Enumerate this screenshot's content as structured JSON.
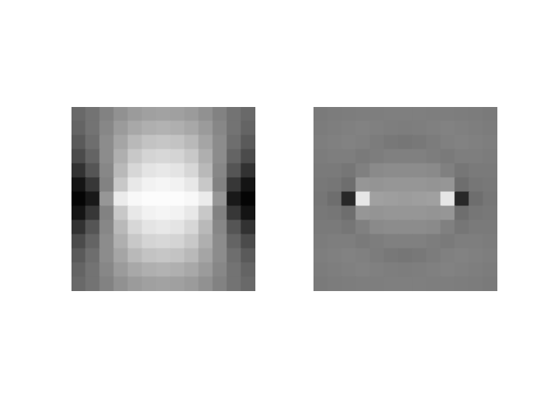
{
  "chart_data": [
    {
      "type": "heatmap",
      "tick_labels": false,
      "clim": [
        0,
        255
      ],
      "cells": [
        [
          105,
          115,
          130,
          145,
          155,
          160,
          162,
          160,
          155,
          145,
          130,
          115,
          105
        ],
        [
          100,
          115,
          135,
          155,
          168,
          175,
          178,
          175,
          168,
          155,
          135,
          115,
          100
        ],
        [
          90,
          110,
          140,
          165,
          185,
          195,
          198,
          195,
          185,
          165,
          140,
          110,
          90
        ],
        [
          75,
          100,
          140,
          175,
          200,
          212,
          215,
          212,
          200,
          175,
          140,
          100,
          75
        ],
        [
          50,
          85,
          135,
          185,
          215,
          228,
          232,
          228,
          215,
          185,
          135,
          85,
          50
        ],
        [
          20,
          55,
          130,
          200,
          232,
          242,
          245,
          242,
          232,
          200,
          130,
          55,
          20
        ],
        [
          5,
          25,
          150,
          235,
          248,
          252,
          252,
          252,
          248,
          235,
          150,
          25,
          5
        ],
        [
          20,
          55,
          130,
          200,
          232,
          242,
          245,
          242,
          232,
          200,
          130,
          55,
          20
        ],
        [
          50,
          85,
          135,
          185,
          215,
          228,
          232,
          228,
          215,
          185,
          135,
          85,
          50
        ],
        [
          75,
          100,
          140,
          175,
          200,
          212,
          215,
          212,
          200,
          175,
          140,
          100,
          75
        ],
        [
          90,
          110,
          140,
          165,
          185,
          195,
          198,
          195,
          185,
          165,
          140,
          110,
          90
        ],
        [
          100,
          115,
          135,
          155,
          168,
          175,
          178,
          175,
          168,
          155,
          135,
          115,
          100
        ],
        [
          105,
          115,
          130,
          145,
          155,
          160,
          162,
          160,
          155,
          145,
          130,
          115,
          105
        ]
      ]
    },
    {
      "type": "heatmap",
      "tick_labels": false,
      "clim": [
        0,
        255
      ],
      "cells": [
        [
          122,
          124,
          125,
          126,
          126,
          127,
          127,
          127,
          126,
          126,
          125,
          124,
          122
        ],
        [
          124,
          126,
          128,
          130,
          128,
          126,
          125,
          126,
          128,
          130,
          128,
          126,
          124
        ],
        [
          126,
          128,
          130,
          128,
          124,
          120,
          118,
          120,
          124,
          128,
          130,
          128,
          126
        ],
        [
          124,
          126,
          126,
          122,
          125,
          128,
          128,
          128,
          125,
          122,
          126,
          126,
          124
        ],
        [
          122,
          122,
          118,
          128,
          138,
          140,
          140,
          140,
          138,
          128,
          118,
          122,
          122
        ],
        [
          120,
          118,
          110,
          150,
          148,
          150,
          150,
          150,
          148,
          150,
          110,
          118,
          120
        ],
        [
          118,
          110,
          40,
          230,
          160,
          158,
          156,
          158,
          160,
          230,
          40,
          110,
          118
        ],
        [
          120,
          118,
          110,
          150,
          148,
          150,
          150,
          150,
          148,
          150,
          110,
          118,
          120
        ],
        [
          122,
          122,
          118,
          128,
          138,
          140,
          140,
          140,
          138,
          128,
          118,
          122,
          122
        ],
        [
          124,
          126,
          126,
          122,
          125,
          128,
          128,
          128,
          125,
          122,
          126,
          126,
          124
        ],
        [
          126,
          128,
          130,
          128,
          124,
          120,
          118,
          120,
          124,
          128,
          130,
          128,
          126
        ],
        [
          124,
          126,
          128,
          130,
          128,
          126,
          125,
          126,
          128,
          130,
          128,
          126,
          124
        ],
        [
          122,
          124,
          125,
          126,
          126,
          127,
          127,
          127,
          126,
          126,
          125,
          124,
          122
        ]
      ]
    }
  ]
}
